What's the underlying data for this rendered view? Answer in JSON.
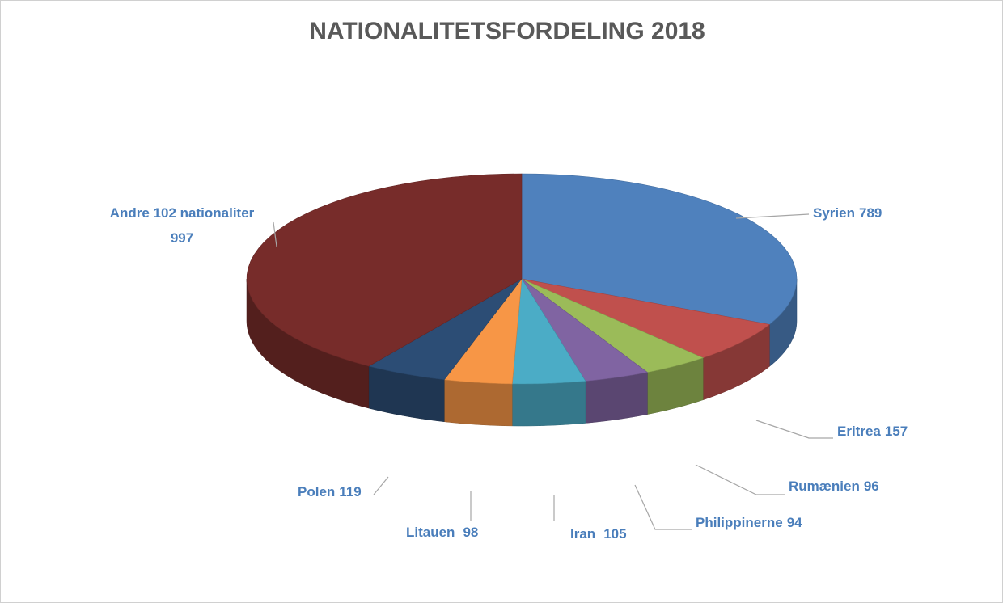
{
  "chart_data": {
    "type": "pie",
    "title": "NATIONALITETSFORDELING 2018",
    "categories": [
      "Syrien",
      "Eritrea",
      "Rumænien",
      "Philippinerne",
      "Iran",
      "Litauen",
      "Polen",
      "Andre 102 nationaliter"
    ],
    "values": [
      789,
      157,
      96,
      94,
      105,
      98,
      119,
      997
    ],
    "colors": [
      "#4f81bd",
      "#c0504d",
      "#9bbb59",
      "#8064a2",
      "#4bacc6",
      "#f79646",
      "#2c4d75",
      "#772c2a"
    ]
  }
}
